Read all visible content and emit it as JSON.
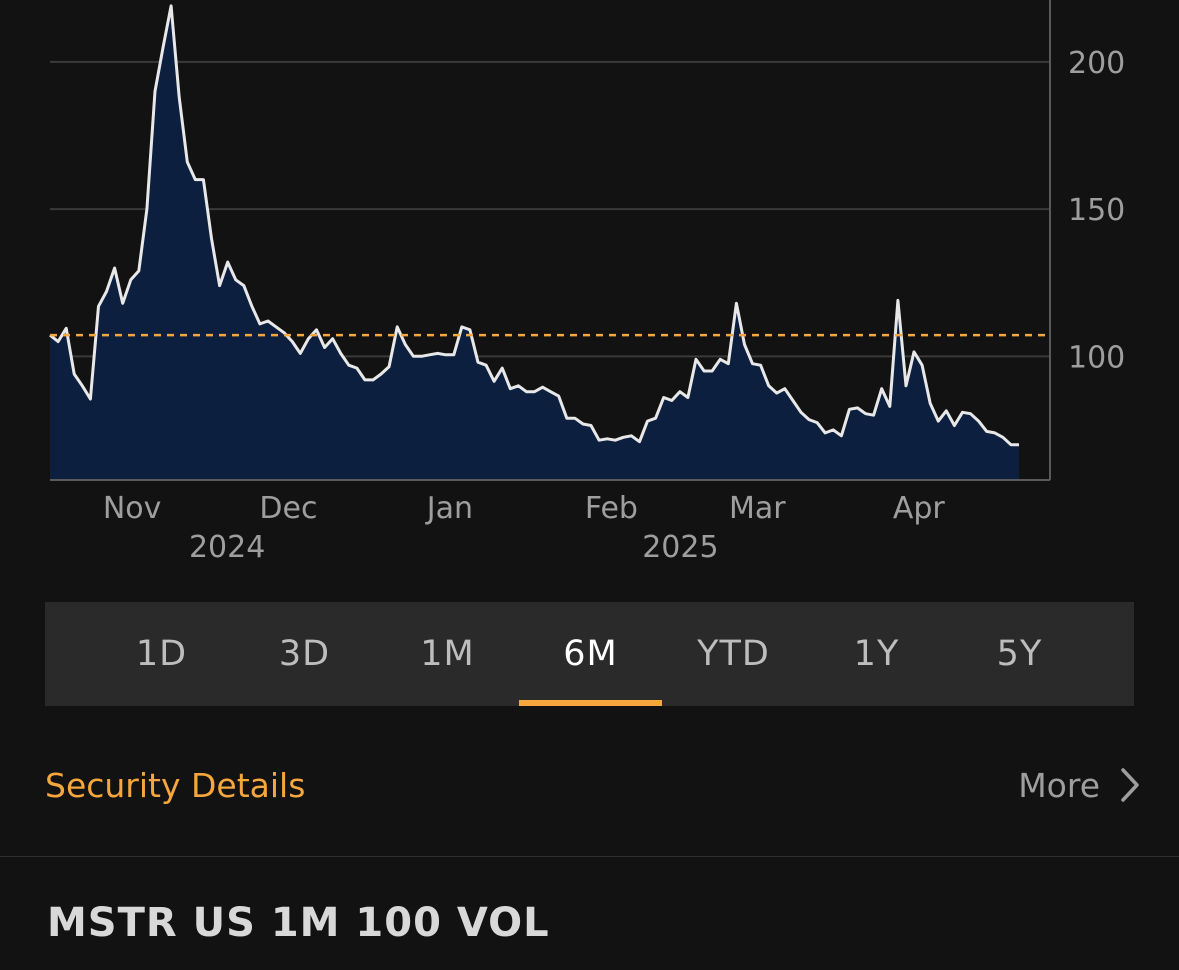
{
  "chart_data": {
    "type": "area",
    "title": "MSTR US 1M 100 VOL",
    "series": [
      {
        "name": "MSTR US 1M 100 VOL",
        "x_start": "2024-10-17",
        "x_end": "2025-04-21",
        "values": [
          107.2,
          105.0,
          109.5,
          94.0,
          90.0,
          85.5,
          117.0,
          122.0,
          130.0,
          118.0,
          126.0,
          129.0,
          150.0,
          190.0,
          205.0,
          219.0,
          188.0,
          166.0,
          160.0,
          160.0,
          140.0,
          124.0,
          132.0,
          126.0,
          124.0,
          117.0,
          111.0,
          112.0,
          110.0,
          108.0,
          105.0,
          101.0,
          106.0,
          109.0,
          103.0,
          106.0,
          101.0,
          97.0,
          96.0,
          92.0,
          92.0,
          94.0,
          96.5,
          110.0,
          104.0,
          100.0,
          100.0,
          100.5,
          101.0,
          100.5,
          100.5,
          110.0,
          109.0,
          98.0,
          97.0,
          91.5,
          96.0,
          89.0,
          90.0,
          88.0,
          88.0,
          89.5,
          88.0,
          86.5,
          79.0,
          79.0,
          77.0,
          76.5,
          71.5,
          72.0,
          71.5,
          72.5,
          73.0,
          71.0,
          78.0,
          79.0,
          86.0,
          85.0,
          88.0,
          86.0,
          99.0,
          95.0,
          95.0,
          99.0,
          97.5,
          118.0,
          104.0,
          97.5,
          97.0,
          90.0,
          87.5,
          89.0,
          85.0,
          81.0,
          78.5,
          77.5,
          74.0,
          75.0,
          73.0,
          82.0,
          82.5,
          80.5,
          80.0,
          89.0,
          83.0,
          119.0,
          90.0,
          101.5,
          97.0,
          84.0,
          78.0,
          81.5,
          76.5,
          81.0,
          80.5,
          78.0,
          74.5,
          74.0,
          72.5,
          70.0,
          70.0
        ],
        "color": "#e8e8e8",
        "fill_color": "#0d1f3f"
      }
    ],
    "reference_line": {
      "value": 107.2,
      "color": "#f5a63d",
      "style": "dashed"
    },
    "yticks": [
      100,
      150,
      200
    ],
    "ylim": [
      58,
      221
    ],
    "y_axis_position": "right",
    "grid": true,
    "xticks": [
      {
        "date": "2024-11-01",
        "label": "Nov"
      },
      {
        "date": "2024-12-01",
        "label": "Dec"
      },
      {
        "date": "2025-01-01",
        "label": "Jan"
      },
      {
        "date": "2025-02-01",
        "label": "Feb"
      },
      {
        "date": "2025-03-01",
        "label": "Mar"
      },
      {
        "date": "2025-04-01",
        "label": "Apr"
      }
    ],
    "year_labels": [
      {
        "date": "2024-11-20",
        "label": "2024"
      },
      {
        "date": "2025-02-15",
        "label": "2025"
      }
    ],
    "xlabel": "",
    "ylabel": ""
  },
  "range_tabs": [
    {
      "label": "1D",
      "active": false
    },
    {
      "label": "3D",
      "active": false
    },
    {
      "label": "1M",
      "active": false
    },
    {
      "label": "6M",
      "active": true
    },
    {
      "label": "YTD",
      "active": false
    },
    {
      "label": "1Y",
      "active": false
    },
    {
      "label": "5Y",
      "active": false
    }
  ],
  "security_details": {
    "title": "Security Details",
    "more_label": "More"
  },
  "ticker": {
    "label": "MSTR US 1M 100 VOL"
  },
  "icons": {
    "more": "chevron-right-icon"
  },
  "colors": {
    "accent": "#f5a63d",
    "background": "#121212",
    "line": "#e8e8e8",
    "area": "#0d1f3f"
  }
}
